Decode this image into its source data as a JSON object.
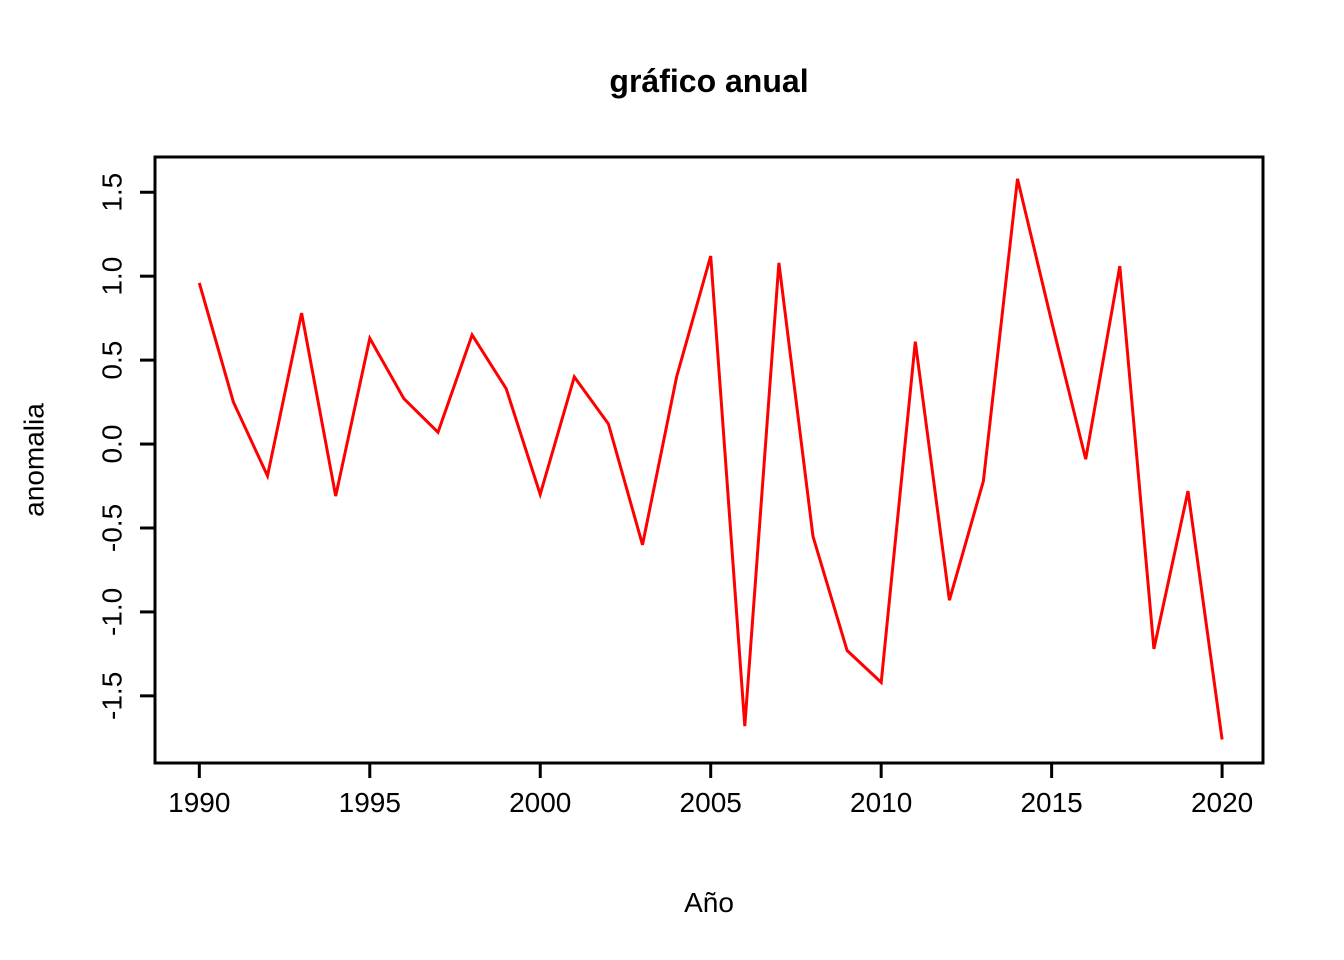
{
  "page": {
    "background": "#ffffff"
  },
  "chart_data": {
    "type": "line",
    "title": "gráfico anual",
    "xlabel": "Año",
    "ylabel": "anomalia",
    "x": [
      1990,
      1991,
      1992,
      1993,
      1994,
      1995,
      1996,
      1997,
      1998,
      1999,
      2000,
      2001,
      2002,
      2003,
      2004,
      2005,
      2006,
      2007,
      2008,
      2009,
      2010,
      2011,
      2012,
      2013,
      2014,
      2015,
      2016,
      2017,
      2018,
      2019,
      2020
    ],
    "series": [
      {
        "name": "anomalia",
        "color": "#ff0000",
        "values": [
          0.96,
          0.25,
          -0.19,
          0.78,
          -0.31,
          0.63,
          0.27,
          0.07,
          0.65,
          0.33,
          -0.3,
          0.4,
          0.12,
          -0.6,
          0.4,
          1.12,
          -1.68,
          1.08,
          -0.55,
          -1.23,
          -1.42,
          0.61,
          -0.93,
          -0.22,
          1.58,
          0.73,
          -0.09,
          1.06,
          -1.22,
          -0.28,
          -1.76
        ]
      }
    ],
    "x_ticks": [
      1990,
      1995,
      2000,
      2005,
      2010,
      2015,
      2020
    ],
    "y_ticks": [
      -1.5,
      -1.0,
      -0.5,
      0.0,
      0.5,
      1.0,
      1.5
    ],
    "xlim": [
      1988.7,
      2021.2
    ],
    "ylim": [
      -1.9,
      1.71
    ],
    "grid": false,
    "legend": "none",
    "axis_color": "#000000",
    "text_color": "#000000",
    "background": "#ffffff"
  }
}
